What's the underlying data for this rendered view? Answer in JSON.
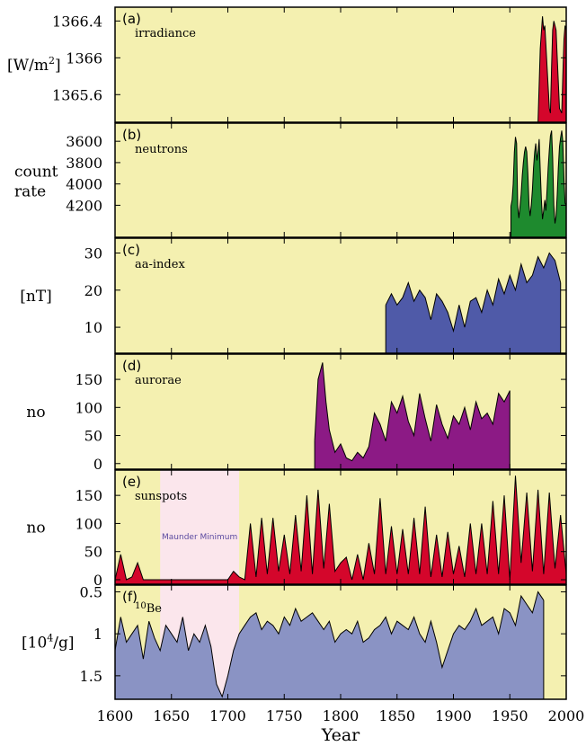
{
  "figure": {
    "x_axis_title": "Year",
    "x_ticks": [
      "1600",
      "1650",
      "1700",
      "1750",
      "1800",
      "1850",
      "1900",
      "1950",
      "2000"
    ],
    "background_color": "#f4f0b0",
    "maunder_band_color": "#fbe6ec"
  },
  "chart_data": [
    {
      "type": "area",
      "panel_letter": "(a)",
      "name": "irradiance",
      "ylabel_parts": [
        "[W/m",
        "2",
        "]"
      ],
      "ytick_labels": [
        "1366.4",
        "1366",
        "1365.6"
      ],
      "ytick_values": [
        1366.4,
        1366.0,
        1365.6
      ],
      "ylim": [
        1365.3,
        1366.55
      ],
      "y_inverted": false,
      "xlim": [
        1600,
        2000
      ],
      "color": "#d4062b",
      "x": [
        1975,
        1977,
        1979,
        1980,
        1981,
        1983,
        1985,
        1986,
        1987,
        1988,
        1989,
        1990,
        1991,
        1992,
        1994,
        1996,
        1997,
        1998,
        1999,
        2000
      ],
      "y": [
        1365.3,
        1366.1,
        1366.45,
        1366.3,
        1366.35,
        1365.9,
        1365.45,
        1365.4,
        1365.9,
        1366.3,
        1366.4,
        1366.35,
        1366.3,
        1366.0,
        1365.45,
        1365.4,
        1365.8,
        1366.2,
        1366.35,
        1366.3
      ]
    },
    {
      "type": "area",
      "panel_letter": "(b)",
      "name": "neutrons",
      "ylabel_lines": [
        "count",
        "rate"
      ],
      "ytick_labels": [
        "3600",
        "3800",
        "4000",
        "4200"
      ],
      "ytick_values": [
        3600,
        3800,
        4000,
        4200
      ],
      "ylim": [
        4500,
        3430
      ],
      "y_inverted": true,
      "xlim": [
        1600,
        2000
      ],
      "color": "#1e8a2e",
      "x": [
        1951,
        1952,
        1953,
        1954,
        1955,
        1956,
        1957,
        1958,
        1959,
        1960,
        1961,
        1962,
        1963,
        1964,
        1965,
        1966,
        1967,
        1968,
        1969,
        1970,
        1971,
        1972,
        1973,
        1974,
        1975,
        1976,
        1977,
        1978,
        1979,
        1980,
        1981,
        1982,
        1983,
        1984,
        1985,
        1986,
        1987,
        1988,
        1989,
        1990,
        1991,
        1992,
        1993,
        1994,
        1995,
        1996,
        1997,
        1998,
        1999,
        2000
      ],
      "y": [
        4210,
        4150,
        4000,
        3700,
        3560,
        3620,
        4200,
        4320,
        4220,
        4100,
        3920,
        3800,
        3700,
        3650,
        3700,
        3900,
        4200,
        4300,
        4200,
        4050,
        3850,
        3700,
        3620,
        3780,
        3700,
        3580,
        3870,
        4150,
        4330,
        4250,
        4150,
        4250,
        4050,
        3850,
        3680,
        3550,
        3500,
        3750,
        4200,
        4370,
        4300,
        4100,
        3850,
        3650,
        3570,
        3500,
        3600,
        3950,
        4180,
        4200
      ]
    },
    {
      "type": "area",
      "panel_letter": "(c)",
      "name": "aa-index",
      "ylabel": "[nT]",
      "ytick_labels": [
        "30",
        "20",
        "10"
      ],
      "ytick_values": [
        30,
        20,
        10
      ],
      "ylim": [
        3,
        34
      ],
      "y_inverted": false,
      "xlim": [
        1600,
        2000
      ],
      "color": "#4f5aa8",
      "x": [
        1840,
        1845,
        1850,
        1855,
        1860,
        1865,
        1870,
        1875,
        1880,
        1885,
        1890,
        1895,
        1900,
        1905,
        1910,
        1915,
        1920,
        1925,
        1930,
        1935,
        1940,
        1945,
        1950,
        1955,
        1960,
        1965,
        1970,
        1975,
        1980,
        1985,
        1990,
        1995
      ],
      "y": [
        16,
        19,
        16,
        18,
        22,
        17,
        20,
        18,
        12,
        19,
        17,
        14,
        9,
        16,
        10,
        17,
        18,
        14,
        20,
        16,
        23,
        19,
        24,
        20,
        27,
        22,
        24,
        29,
        26,
        30,
        28,
        22
      ]
    },
    {
      "type": "area",
      "panel_letter": "(d)",
      "name": "aurorae",
      "ylabel": "no",
      "ytick_labels": [
        "150",
        "100",
        "50",
        "0"
      ],
      "ytick_values": [
        150,
        100,
        50,
        0
      ],
      "ylim": [
        -10,
        195
      ],
      "y_inverted": false,
      "xlim": [
        1600,
        2000
      ],
      "color": "#8c1a85",
      "x": [
        1777,
        1780,
        1784,
        1787,
        1790,
        1795,
        1800,
        1805,
        1810,
        1815,
        1820,
        1825,
        1830,
        1835,
        1840,
        1845,
        1850,
        1855,
        1860,
        1865,
        1870,
        1875,
        1880,
        1885,
        1890,
        1895,
        1900,
        1905,
        1910,
        1915,
        1920,
        1925,
        1930,
        1935,
        1940,
        1945,
        1950
      ],
      "y": [
        40,
        150,
        180,
        110,
        60,
        20,
        35,
        10,
        5,
        20,
        10,
        30,
        90,
        70,
        40,
        110,
        90,
        120,
        75,
        50,
        125,
        80,
        40,
        105,
        70,
        45,
        85,
        70,
        100,
        60,
        110,
        80,
        90,
        70,
        125,
        110,
        130
      ]
    },
    {
      "type": "area",
      "panel_letter": "(e)",
      "name": "sunspots",
      "ylabel": "no",
      "ytick_labels": [
        "150",
        "100",
        "50",
        "0"
      ],
      "ytick_values": [
        150,
        100,
        50,
        0
      ],
      "ylim": [
        -8,
        195
      ],
      "y_inverted": false,
      "xlim": [
        1600,
        2000
      ],
      "color": "#d4062b",
      "annotation": "Maunder Minimum",
      "maunder_range": [
        1640,
        1710
      ],
      "x": [
        1600,
        1605,
        1610,
        1615,
        1620,
        1625,
        1630,
        1640,
        1700,
        1705,
        1710,
        1715,
        1720,
        1725,
        1730,
        1735,
        1740,
        1745,
        1750,
        1755,
        1760,
        1765,
        1770,
        1775,
        1780,
        1785,
        1790,
        1795,
        1800,
        1805,
        1810,
        1815,
        1820,
        1825,
        1830,
        1835,
        1840,
        1845,
        1850,
        1855,
        1860,
        1865,
        1870,
        1875,
        1880,
        1885,
        1890,
        1895,
        1900,
        1905,
        1910,
        1915,
        1920,
        1925,
        1930,
        1935,
        1940,
        1945,
        1950,
        1955,
        1960,
        1965,
        1970,
        1975,
        1980,
        1985,
        1990,
        1995,
        2000
      ],
      "y": [
        0,
        45,
        0,
        5,
        30,
        0,
        0,
        0,
        0,
        15,
        5,
        0,
        100,
        5,
        110,
        10,
        110,
        15,
        80,
        10,
        115,
        15,
        150,
        10,
        160,
        20,
        135,
        15,
        30,
        40,
        0,
        45,
        0,
        65,
        10,
        145,
        10,
        95,
        10,
        90,
        10,
        110,
        10,
        130,
        5,
        80,
        5,
        85,
        10,
        60,
        5,
        100,
        10,
        100,
        10,
        140,
        10,
        150,
        0,
        185,
        30,
        155,
        15,
        160,
        10,
        155,
        20,
        115,
        10
      ]
    },
    {
      "type": "area",
      "panel_letter": "(f)",
      "name": "10Be",
      "name_parts": [
        "10",
        "Be"
      ],
      "ylabel_parts": [
        "[10",
        "4",
        "/g]"
      ],
      "ytick_labels": [
        "0.5",
        "1",
        "1.5"
      ],
      "ytick_values": [
        0.5,
        1,
        1.5
      ],
      "ylim": [
        1.78,
        0.42
      ],
      "y_inverted": true,
      "xlim": [
        1600,
        2000
      ],
      "color": "#8a93c4",
      "maunder_range": [
        1640,
        1710
      ],
      "x": [
        1600,
        1605,
        1610,
        1615,
        1620,
        1625,
        1630,
        1635,
        1640,
        1645,
        1650,
        1655,
        1660,
        1665,
        1670,
        1675,
        1680,
        1685,
        1690,
        1695,
        1700,
        1705,
        1710,
        1715,
        1720,
        1725,
        1730,
        1735,
        1740,
        1745,
        1750,
        1755,
        1760,
        1765,
        1770,
        1775,
        1780,
        1785,
        1790,
        1795,
        1800,
        1805,
        1810,
        1815,
        1820,
        1825,
        1830,
        1835,
        1840,
        1845,
        1850,
        1855,
        1860,
        1865,
        1870,
        1875,
        1880,
        1885,
        1890,
        1895,
        1900,
        1905,
        1910,
        1915,
        1920,
        1925,
        1930,
        1935,
        1940,
        1945,
        1950,
        1955,
        1960,
        1965,
        1970,
        1975,
        1980
      ],
      "y": [
        1.2,
        0.8,
        1.1,
        1.0,
        0.9,
        1.3,
        0.85,
        1.05,
        1.2,
        0.9,
        1.0,
        1.1,
        0.8,
        1.2,
        1.0,
        1.1,
        0.9,
        1.15,
        1.6,
        1.75,
        1.5,
        1.2,
        1.0,
        0.9,
        0.8,
        0.75,
        0.95,
        0.85,
        0.9,
        1.0,
        0.8,
        0.9,
        0.7,
        0.85,
        0.8,
        0.75,
        0.85,
        0.95,
        0.85,
        1.1,
        1.0,
        0.95,
        1.0,
        0.85,
        1.1,
        1.05,
        0.95,
        0.9,
        0.8,
        1.0,
        0.85,
        0.9,
        0.95,
        0.8,
        1.0,
        1.1,
        0.85,
        1.1,
        1.4,
        1.2,
        1.0,
        0.9,
        0.95,
        0.85,
        0.7,
        0.9,
        0.85,
        0.8,
        1.0,
        0.7,
        0.75,
        0.9,
        0.55,
        0.65,
        0.75,
        0.5,
        0.6
      ]
    }
  ]
}
